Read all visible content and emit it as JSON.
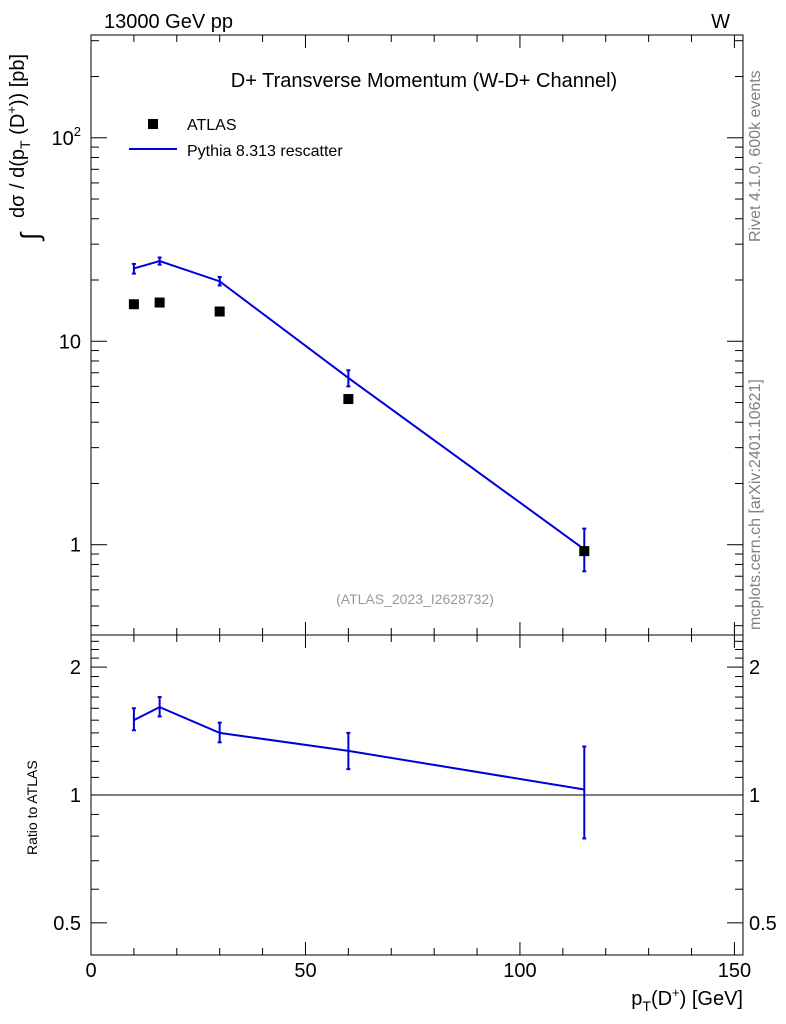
{
  "header": {
    "process": "13000 GeV pp",
    "channel": "W"
  },
  "side_labels": {
    "rivet": "Rivet 4.1.0,  600k events",
    "source": "mcplots.cern.ch [arXiv:2401.10621]"
  },
  "chart_data": [
    {
      "type": "line",
      "panel": "main",
      "title": "D+ Transverse Momentum (W-D+ Channel)",
      "analysis_id": "(ATLAS_2023_I2628732)",
      "ylabel": "∫ dσ / d(p_T (D+)) [pb]",
      "yscale": "log",
      "xlim": [
        0,
        152
      ],
      "ylim": [
        0.36,
        320
      ],
      "ytick_labels": [
        "1",
        "10",
        "10^2"
      ],
      "legend": [
        "ATLAS",
        "Pythia 8.313 rescatter"
      ],
      "series": [
        {
          "name": "ATLAS",
          "style": "markers",
          "x": [
            10,
            16,
            30,
            60,
            115
          ],
          "y": [
            15.2,
            15.5,
            14.0,
            5.2,
            0.93
          ]
        },
        {
          "name": "Pythia 8.313 rescatter",
          "style": "line",
          "color": "#0000dd",
          "x": [
            10,
            16,
            30,
            60,
            115
          ],
          "y": [
            22.8,
            24.8,
            19.7,
            6.6,
            0.95
          ],
          "err_lo": [
            21.5,
            23.8,
            18.8,
            6.0,
            0.74
          ],
          "err_hi": [
            24.0,
            25.8,
            20.7,
            7.2,
            1.2
          ]
        }
      ]
    },
    {
      "type": "line",
      "panel": "ratio",
      "xlabel": "p_T(D+) [GeV]",
      "ylabel": "Ratio to ATLAS",
      "yscale": "log",
      "xlim": [
        0,
        152
      ],
      "ylim": [
        0.42,
        2.38
      ],
      "xtick_labels": [
        "0",
        "50",
        "100",
        "150"
      ],
      "ytick_labels": [
        "0.5",
        "1",
        "2"
      ],
      "reference_line": 1,
      "series": [
        {
          "name": "Pythia 8.313 rescatter / ATLAS",
          "color": "#0000dd",
          "x": [
            10,
            16,
            30,
            60,
            115
          ],
          "y": [
            1.5,
            1.61,
            1.4,
            1.27,
            1.03
          ],
          "err_lo": [
            1.42,
            1.53,
            1.33,
            1.15,
            0.79
          ],
          "err_hi": [
            1.6,
            1.7,
            1.48,
            1.4,
            1.3
          ]
        }
      ]
    }
  ]
}
